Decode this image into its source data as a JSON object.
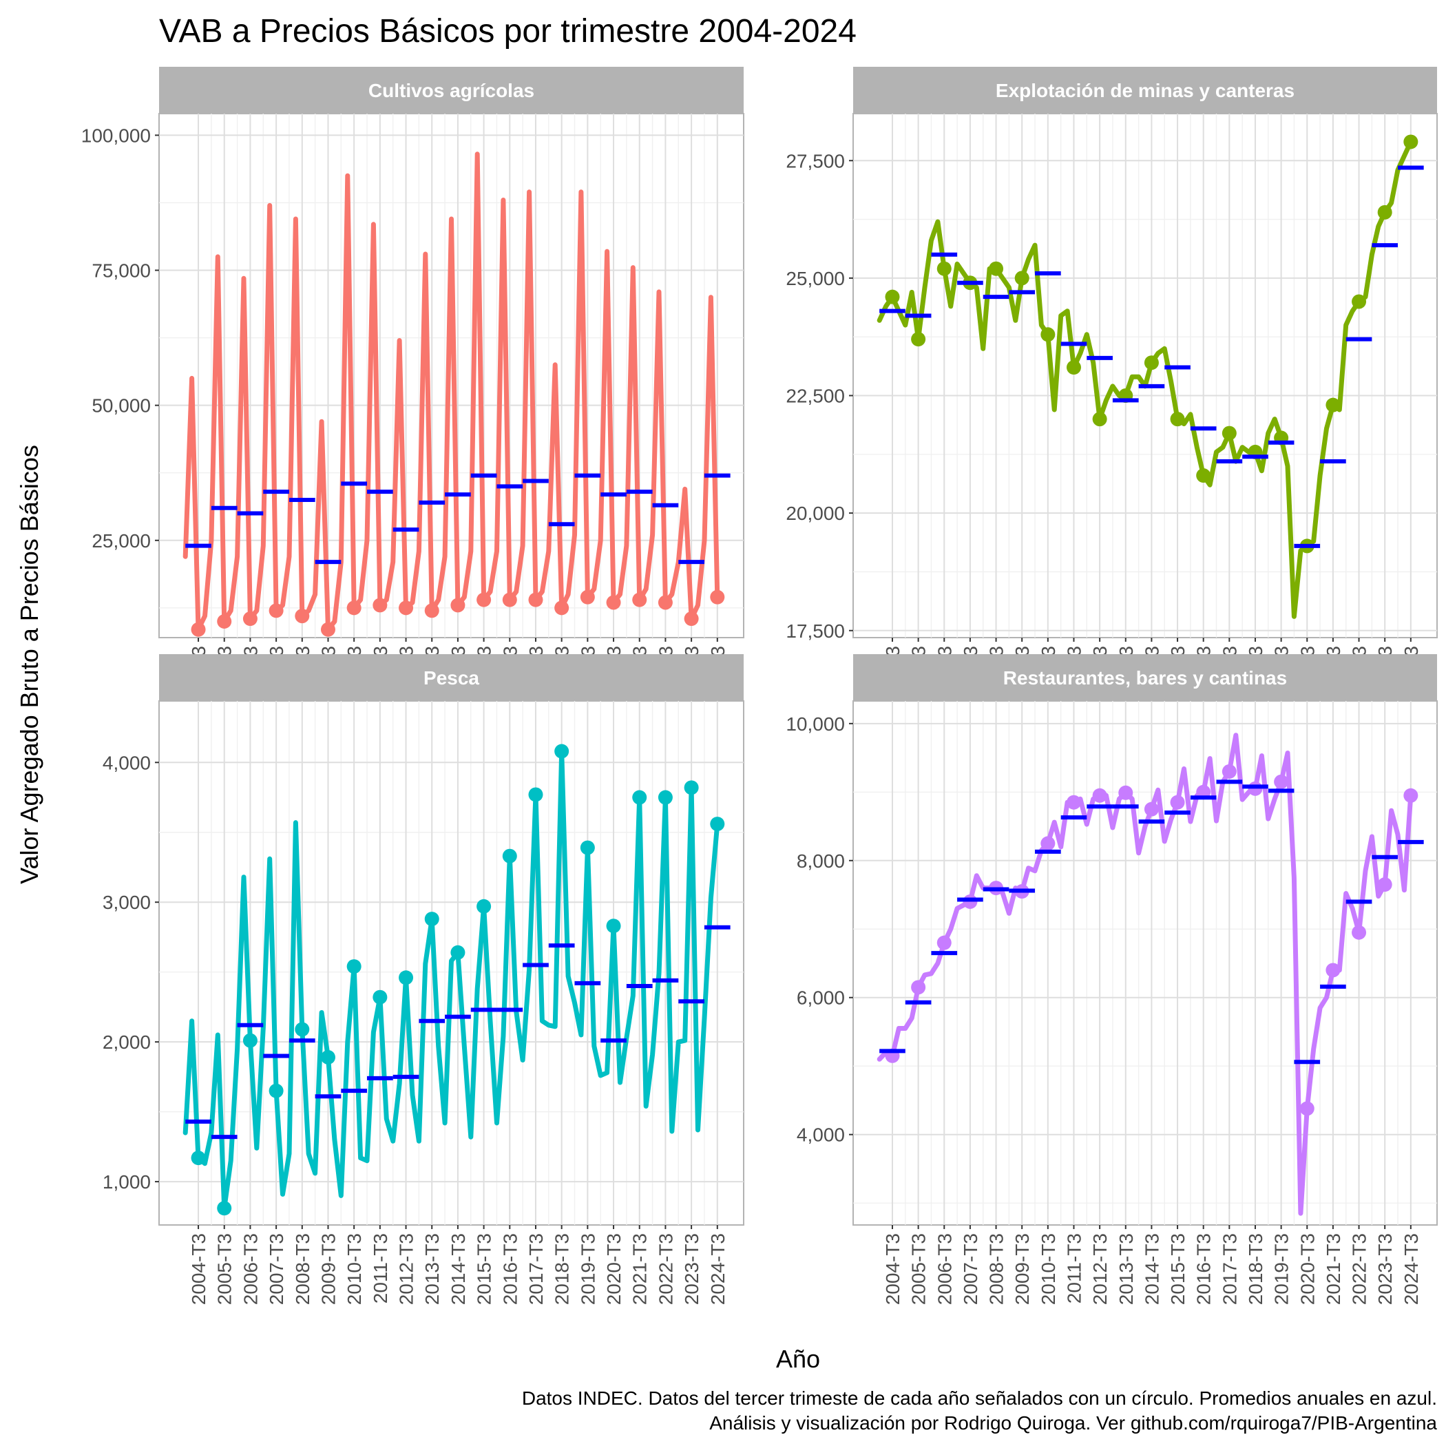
{
  "chart_data": {
    "type": "line",
    "title": "VAB a Precios Básicos por trimestre 2004-2024",
    "xlabel": "Año",
    "ylabel": "Valor Agregado Bruto a Precios Básicos",
    "caption_lines": [
      "Datos INDEC. Datos del tercer trimeste de cada año señalados con un círculo. Promedios anuales en azul.",
      "Análisis y visualización por Rodrigo Quiroga. Ver github.com/rquiroga7/PIB-Argentina"
    ],
    "x_tick_labels": [
      "2004-T3",
      "2005-T3",
      "2006-T3",
      "2007-T3",
      "2008-T3",
      "2009-T3",
      "2010-T3",
      "2011-T3",
      "2012-T3",
      "2013-T3",
      "2014-T3",
      "2015-T3",
      "2016-T3",
      "2017-T3",
      "2018-T3",
      "2019-T3",
      "2020-T3",
      "2021-T3",
      "2022-T3",
      "2023-T3",
      "2024-T3"
    ],
    "x_domain_quarters": [
      2004,
      1,
      2024,
      3
    ],
    "annual_mean_color": "#0000ff",
    "panels": [
      {
        "name": "Cultivos agrícolas",
        "color": "#f8766d",
        "ylim": [
          7000,
          104000
        ],
        "yticks": [
          25000,
          50000,
          75000,
          100000
        ],
        "ytick_labels": [
          "25,000",
          "50,000",
          "75,000",
          "100,000"
        ],
        "years": [
          {
            "year": 2004,
            "q": [
              22000,
              55000,
              8500,
              11000
            ],
            "mean": 24000
          },
          {
            "year": 2005,
            "q": [
              25000,
              77500,
              10000,
              12000
            ],
            "mean": 31000
          },
          {
            "year": 2006,
            "q": [
              22000,
              73500,
              10500,
              12000
            ],
            "mean": 30000
          },
          {
            "year": 2007,
            "q": [
              24000,
              87000,
              12000,
              13000
            ],
            "mean": 34000
          },
          {
            "year": 2008,
            "q": [
              22000,
              84500,
              11000,
              12000
            ],
            "mean": 32500
          },
          {
            "year": 2009,
            "q": [
              15000,
              47000,
              8500,
              10000
            ],
            "mean": 21000
          },
          {
            "year": 2010,
            "q": [
              21000,
              92500,
              12500,
              14000
            ],
            "mean": 35500
          },
          {
            "year": 2011,
            "q": [
              25000,
              83500,
              13000,
              14000
            ],
            "mean": 34000
          },
          {
            "year": 2012,
            "q": [
              21000,
              62000,
              12500,
              13500
            ],
            "mean": 27000
          },
          {
            "year": 2013,
            "q": [
              23000,
              78000,
              12000,
              14000
            ],
            "mean": 32000
          },
          {
            "year": 2014,
            "q": [
              22000,
              84500,
              13000,
              14500
            ],
            "mean": 33500
          },
          {
            "year": 2015,
            "q": [
              23000,
              96500,
              14000,
              15500
            ],
            "mean": 37000
          },
          {
            "year": 2016,
            "q": [
              23000,
              88000,
              14000,
              15500
            ],
            "mean": 35000
          },
          {
            "year": 2017,
            "q": [
              24000,
              89500,
              14000,
              15500
            ],
            "mean": 36000
          },
          {
            "year": 2018,
            "q": [
              23000,
              57500,
              12500,
              15000
            ],
            "mean": 28000
          },
          {
            "year": 2019,
            "q": [
              26000,
              89500,
              14500,
              16000
            ],
            "mean": 37000
          },
          {
            "year": 2020,
            "q": [
              25000,
              78500,
              13500,
              15000
            ],
            "mean": 33500
          },
          {
            "year": 2021,
            "q": [
              24000,
              75500,
              14000,
              16000
            ],
            "mean": 34000
          },
          {
            "year": 2022,
            "q": [
              26000,
              71000,
              13500,
              15000
            ],
            "mean": 31500
          },
          {
            "year": 2023,
            "q": [
              21000,
              34500,
              10500,
              13000
            ],
            "mean": 21000
          },
          {
            "year": 2024,
            "q": [
              25000,
              70000,
              14500
            ]
          }
        ],
        "mean_2024": 37000
      },
      {
        "name": "Explotación de minas y canteras",
        "color": "#7cae00",
        "ylim": [
          17350,
          28500
        ],
        "yticks": [
          17500,
          20000,
          22500,
          25000,
          27500
        ],
        "ytick_labels": [
          "17,500",
          "20,000",
          "22,500",
          "25,000",
          "27,500"
        ],
        "years": [
          {
            "year": 2004,
            "q": [
              24100,
              24400,
              24600,
              24300
            ],
            "mean": 24300
          },
          {
            "year": 2005,
            "q": [
              24000,
              24700,
              23700,
              24800
            ],
            "mean": 24200
          },
          {
            "year": 2006,
            "q": [
              25800,
              26200,
              25200,
              24400
            ],
            "mean": 25500
          },
          {
            "year": 2007,
            "q": [
              25300,
              25100,
              24900,
              24800
            ],
            "mean": 24900
          },
          {
            "year": 2008,
            "q": [
              23500,
              25200,
              25200,
              25000
            ],
            "mean": 24600
          },
          {
            "year": 2009,
            "q": [
              24800,
              24100,
              25000,
              25400
            ],
            "mean": 24700
          },
          {
            "year": 2010,
            "q": [
              25700,
              24000,
              23800,
              22200
            ],
            "mean": 25100
          },
          {
            "year": 2011,
            "q": [
              24200,
              24300,
              23100,
              23400
            ],
            "mean": 23600
          },
          {
            "year": 2012,
            "q": [
              23800,
              23200,
              22000,
              22400
            ],
            "mean": 23300
          },
          {
            "year": 2013,
            "q": [
              22700,
              22500,
              22500,
              22900
            ],
            "mean": 22400
          },
          {
            "year": 2014,
            "q": [
              22900,
              22700,
              23200,
              23400
            ],
            "mean": 22700
          },
          {
            "year": 2015,
            "q": [
              23500,
              22800,
              22000,
              21900
            ],
            "mean": 23100
          },
          {
            "year": 2016,
            "q": [
              22100,
              21400,
              20800,
              20600
            ],
            "mean": 21800
          },
          {
            "year": 2017,
            "q": [
              21300,
              21400,
              21700,
              21100
            ],
            "mean": 21100
          },
          {
            "year": 2018,
            "q": [
              21400,
              21300,
              21300,
              20900
            ],
            "mean": 21200
          },
          {
            "year": 2019,
            "q": [
              21700,
              22000,
              21600,
              21000
            ],
            "mean": 21500
          },
          {
            "year": 2020,
            "q": [
              17800,
              19200,
              19300,
              19400
            ],
            "mean": 19300
          },
          {
            "year": 2021,
            "q": [
              20800,
              21800,
              22300,
              22200
            ],
            "mean": 21100
          },
          {
            "year": 2022,
            "q": [
              24000,
              24300,
              24500,
              24600
            ],
            "mean": 23700
          },
          {
            "year": 2023,
            "q": [
              25500,
              26100,
              26400,
              26600
            ],
            "mean": 25700
          },
          {
            "year": 2024,
            "q": [
              27300,
              27600,
              27900
            ]
          }
        ],
        "mean_2024": 27350
      },
      {
        "name": "Pesca",
        "color": "#00bfc4",
        "ylim": [
          690,
          4440
        ],
        "yticks": [
          1000,
          2000,
          3000,
          4000
        ],
        "ytick_labels": [
          "1,000",
          "2,000",
          "3,000",
          "4,000"
        ],
        "years": [
          {
            "year": 2004,
            "q": [
              1350,
              2150,
              1170,
              1130
            ],
            "mean": 1430
          },
          {
            "year": 2005,
            "q": [
              1350,
              2050,
              810,
              1150
            ],
            "mean": 1320
          },
          {
            "year": 2006,
            "q": [
              1950,
              3180,
              2010,
              1240
            ],
            "mean": 2120
          },
          {
            "year": 2007,
            "q": [
              2100,
              3310,
              1650,
              910
            ],
            "mean": 1900
          },
          {
            "year": 2008,
            "q": [
              1200,
              3570,
              2090,
              1200
            ],
            "mean": 2010
          },
          {
            "year": 2009,
            "q": [
              1060,
              2210,
              1890,
              1300
            ],
            "mean": 1610
          },
          {
            "year": 2010,
            "q": [
              900,
              2000,
              2540,
              1170
            ],
            "mean": 1650
          },
          {
            "year": 2011,
            "q": [
              1150,
              2070,
              2320,
              1450
            ],
            "mean": 1740
          },
          {
            "year": 2012,
            "q": [
              1290,
              1700,
              2460,
              1620
            ],
            "mean": 1750
          },
          {
            "year": 2013,
            "q": [
              1290,
              2560,
              2880,
              1970
            ],
            "mean": 2150
          },
          {
            "year": 2014,
            "q": [
              1420,
              2580,
              2640,
              1970
            ],
            "mean": 2180
          },
          {
            "year": 2015,
            "q": [
              1320,
              2380,
              2970,
              2150
            ],
            "mean": 2230
          },
          {
            "year": 2016,
            "q": [
              1420,
              2040,
              3330,
              2220
            ],
            "mean": 2230
          },
          {
            "year": 2017,
            "q": [
              1870,
              2520,
              3770,
              2150
            ],
            "mean": 2550
          },
          {
            "year": 2018,
            "q": [
              2120,
              2110,
              4080,
              2470
            ],
            "mean": 2690
          },
          {
            "year": 2019,
            "q": [
              2280,
              2050,
              3390,
              1970
            ],
            "mean": 2420
          },
          {
            "year": 2020,
            "q": [
              1760,
              1780,
              2830,
              1710
            ],
            "mean": 2010
          },
          {
            "year": 2021,
            "q": [
              2030,
              2330,
              3750,
              1540
            ],
            "mean": 2400
          },
          {
            "year": 2022,
            "q": [
              1910,
              2490,
              3750,
              1360
            ],
            "mean": 2440
          },
          {
            "year": 2023,
            "q": [
              2000,
              2010,
              3820,
              1370
            ],
            "mean": 2290
          },
          {
            "year": 2024,
            "q": [
              2170,
              3030,
              3560
            ]
          }
        ],
        "mean_2024": 2820
      },
      {
        "name": "Restaurantes, bares y cantinas",
        "color": "#c77cff",
        "ylim": [
          2680,
          10330
        ],
        "yticks": [
          4000,
          6000,
          8000,
          10000
        ],
        "ytick_labels": [
          "4,000",
          "6,000",
          "8,000",
          "10,000"
        ],
        "years": [
          {
            "year": 2004,
            "q": [
              5100,
              5200,
              5150,
              5550
            ],
            "mean": 5220
          },
          {
            "year": 2005,
            "q": [
              5550,
              5700,
              6150,
              6330
            ],
            "mean": 5930
          },
          {
            "year": 2006,
            "q": [
              6350,
              6500,
              6800,
              7000
            ],
            "mean": 6650
          },
          {
            "year": 2007,
            "q": [
              7300,
              7350,
              7400,
              7780
            ],
            "mean": 7430
          },
          {
            "year": 2008,
            "q": [
              7600,
              7600,
              7600,
              7530
            ],
            "mean": 7580
          },
          {
            "year": 2009,
            "q": [
              7230,
              7600,
              7550,
              7890
            ],
            "mean": 7560
          },
          {
            "year": 2010,
            "q": [
              7850,
              8150,
              8250,
              8560
            ],
            "mean": 8130
          },
          {
            "year": 2011,
            "q": [
              8200,
              8850,
              8850,
              8900
            ],
            "mean": 8630
          },
          {
            "year": 2012,
            "q": [
              8530,
              8900,
              8950,
              8950
            ],
            "mean": 8790
          },
          {
            "year": 2013,
            "q": [
              8480,
              8900,
              8990,
              8900
            ],
            "mean": 8790
          },
          {
            "year": 2014,
            "q": [
              8110,
              8500,
              8750,
              9030
            ],
            "mean": 8570
          },
          {
            "year": 2015,
            "q": [
              8280,
              8600,
              8850,
              9340
            ],
            "mean": 8700
          },
          {
            "year": 2016,
            "q": [
              8570,
              8950,
              9000,
              9490
            ],
            "mean": 8920
          },
          {
            "year": 2017,
            "q": [
              8580,
              9150,
              9300,
              9830
            ],
            "mean": 9150
          },
          {
            "year": 2018,
            "q": [
              8890,
              9000,
              9050,
              9530
            ],
            "mean": 9080
          },
          {
            "year": 2019,
            "q": [
              8610,
              8900,
              9150,
              9570
            ],
            "mean": 9020
          },
          {
            "year": 2020,
            "q": [
              7750,
              2850,
              4380,
              5250
            ],
            "mean": 5060
          },
          {
            "year": 2021,
            "q": [
              5850,
              6000,
              6400,
              6400
            ],
            "mean": 6160
          },
          {
            "year": 2022,
            "q": [
              7520,
              7300,
              6950,
              7850
            ],
            "mean": 7400
          },
          {
            "year": 2023,
            "q": [
              8350,
              7480,
              7650,
              8730
            ],
            "mean": 8050
          },
          {
            "year": 2024,
            "q": [
              8380,
              7570,
              8950
            ]
          }
        ],
        "mean_2024": 8270
      }
    ]
  }
}
